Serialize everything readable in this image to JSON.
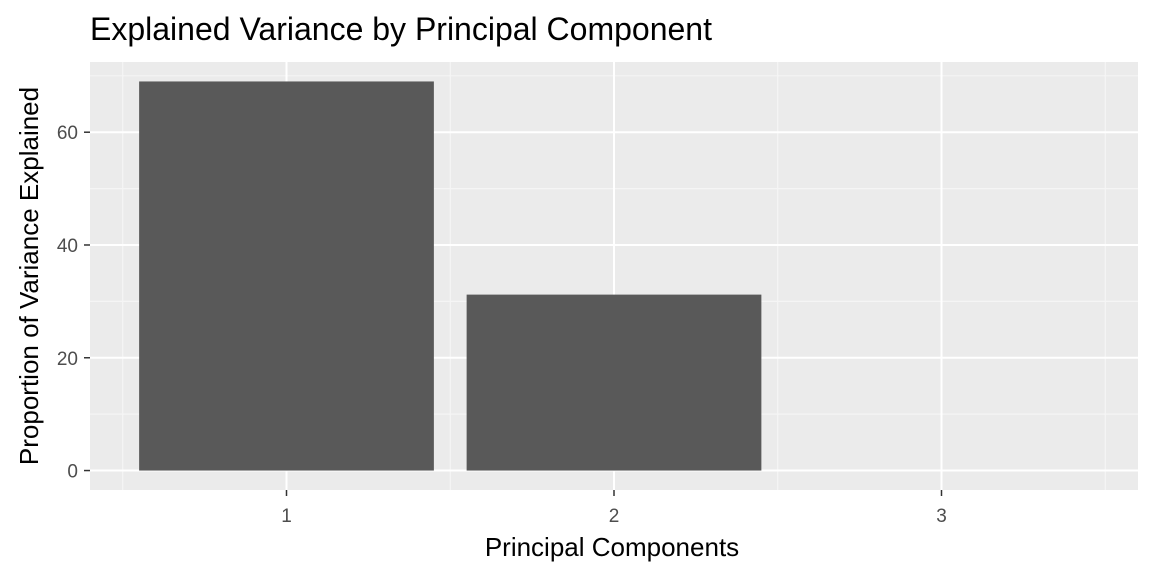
{
  "chart_data": {
    "type": "bar",
    "title": "Explained Variance by Principal Component",
    "xlabel": "Principal Components",
    "ylabel": "Proportion of Variance Explained",
    "categories": [
      "1",
      "2",
      "3"
    ],
    "values": [
      69,
      31.2,
      0
    ],
    "ylim": [
      -3.45,
      72.45
    ],
    "yticks": [
      0,
      20,
      40,
      60
    ],
    "ytick_labels": [
      "0",
      "20",
      "40",
      "60"
    ],
    "grid": true,
    "legend": "none",
    "colors": {
      "bar": "#595959",
      "panel": "#ebebeb",
      "grid_major": "#ffffff",
      "grid_minor": "#f5f5f5"
    }
  }
}
